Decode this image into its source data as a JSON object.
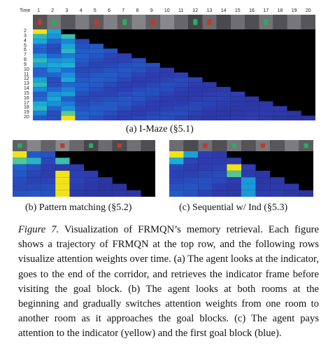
{
  "figure_a": {
    "time_label": "Time",
    "time_ticks": [
      "1",
      "2",
      "3",
      "4",
      "5",
      "6",
      "7",
      "8",
      "9",
      "10",
      "11",
      "12",
      "13",
      "14",
      "15",
      "16",
      "17",
      "18",
      "19",
      "20"
    ],
    "row_labels": [
      "2",
      "3",
      "4",
      "5",
      "6",
      "7",
      "8",
      "9",
      "10",
      "11",
      "12",
      "13",
      "14",
      "15",
      "16",
      "17",
      "18",
      "19",
      "20"
    ],
    "caption": "(a) I-Maze (§5.1)"
  },
  "figure_b": {
    "caption": "(b) Pattern matching (§5.2)"
  },
  "figure_c": {
    "caption": "(c) Sequential w/ Ind (§5.3)"
  },
  "caption": {
    "label": "Figure 7.",
    "text": " Visualization of FRMQN’s memory retrieval. Each figure shows a trajectory of FRMQN at the top row, and the following rows visualize attention weights over time. (a) The agent looks at the indicator, goes to the end of the corridor, and retrieves the indicator frame before visiting the goal block. (b) The agent looks at both rooms at the beginning and gradually switches attention weights from one room to another room as it approaches the goal blocks. (c) The agent pays attention to the indicator (yellow) and the first goal block (blue)."
  },
  "colors": {
    "background": "#000000",
    "low": "#2b2d8c",
    "mid": "#1f5fd0",
    "high": "#1fb0d8",
    "peak": "#f2e21a"
  }
}
